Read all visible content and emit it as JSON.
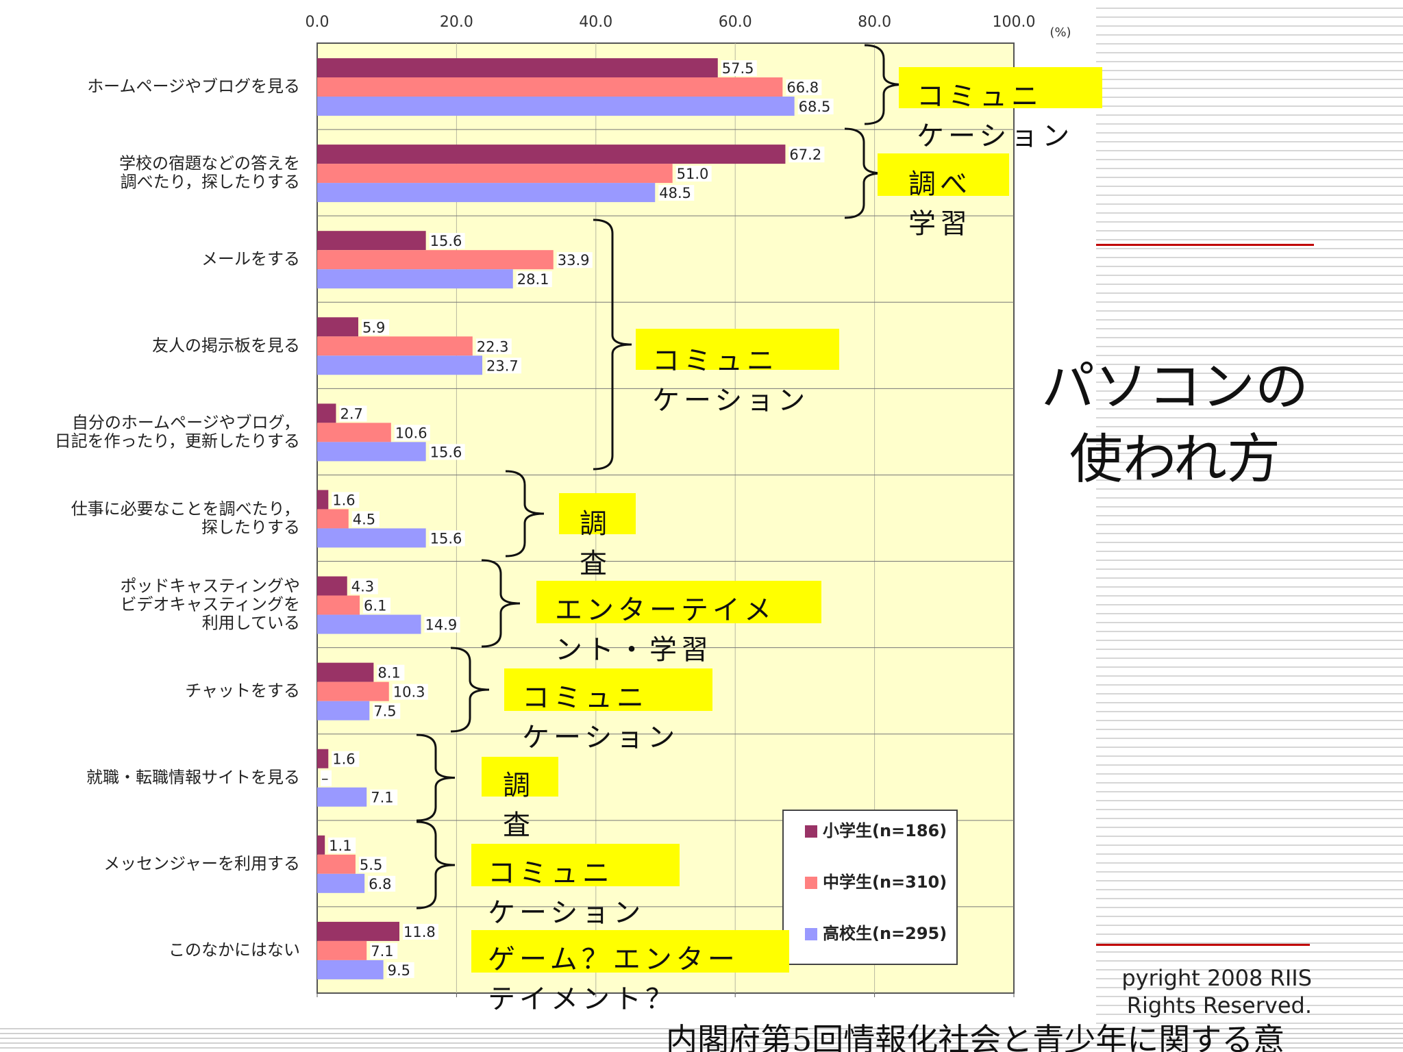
{
  "slide": {
    "title_lines": [
      "パソコンの",
      "使われ方"
    ],
    "copyright_lines": [
      "pyright 2008 RIIS",
      "Rights Reserved."
    ],
    "source": "内閣府第5回情報化社会と青少年に関する意"
  },
  "annotations": [
    {
      "text": "コミュニ ケーション",
      "bracket_for": [
        "ホームページやブログを見る"
      ]
    },
    {
      "text": "調べ 学習",
      "bracket_for": [
        "学校の宿題などの答えを調べたり，探したりする"
      ]
    },
    {
      "text": "コミュニ ケーション",
      "bracket_for": [
        "メールをする",
        "友人の掲示板を見る",
        "自分のホームページやブログ，日記を作ったり，更新したりする"
      ]
    },
    {
      "text": "調 査",
      "bracket_for": [
        "仕事に必要なことを調べたり，探したりする"
      ]
    },
    {
      "text": "エンターテイメ ント・学習",
      "bracket_for": [
        "ポッドキャスティングやビデオキャスティングを利用している"
      ]
    },
    {
      "text": "コミュニ ケーション",
      "bracket_for": [
        "チャットをする"
      ]
    },
    {
      "text": "調 査",
      "bracket_for": [
        "就職・転職情報サイトを見る"
      ]
    },
    {
      "text": "コミュニ ケーション",
      "bracket_for": [
        "メッセンジャーを利用する"
      ]
    },
    {
      "text": "ゲーム？エンター テイメント？",
      "bracket_for": [
        "このなかにはない"
      ]
    }
  ],
  "colors": {
    "plot_bg": "#ffffcc",
    "elementary": "#993366",
    "junior_high": "#ff8080",
    "high_school": "#9999ff",
    "highlight": "#ffff00",
    "accent_line": "#c00000"
  },
  "chart_data": {
    "type": "bar",
    "orientation": "horizontal",
    "unit": "(%)",
    "xlim": [
      0,
      100
    ],
    "x_ticks": [
      "0.0",
      "20.0",
      "40.0",
      "60.0",
      "80.0",
      "100.0"
    ],
    "grid": true,
    "legend_position": "bottom-right",
    "categories": [
      {
        "lines": [
          "ホームページやブログを見る"
        ]
      },
      {
        "lines": [
          "学校の宿題などの答えを",
          "調べたり，探したりする"
        ]
      },
      {
        "lines": [
          "メールをする"
        ]
      },
      {
        "lines": [
          "友人の掲示板を見る"
        ]
      },
      {
        "lines": [
          "自分のホームページやブログ，",
          "日記を作ったり，更新したりする"
        ]
      },
      {
        "lines": [
          "仕事に必要なことを調べたり，",
          "探したりする"
        ]
      },
      {
        "lines": [
          "ポッドキャスティングや",
          "ビデオキャスティングを",
          "利用している"
        ]
      },
      {
        "lines": [
          "チャットをする"
        ]
      },
      {
        "lines": [
          "就職・転職情報サイトを見る"
        ]
      },
      {
        "lines": [
          "メッセンジャーを利用する"
        ]
      },
      {
        "lines": [
          "このなかにはない"
        ]
      }
    ],
    "series": [
      {
        "name": "小学生(n=186)",
        "values": [
          57.5,
          67.2,
          15.6,
          5.9,
          2.7,
          1.6,
          4.3,
          8.1,
          1.6,
          1.1,
          11.8
        ],
        "labels": [
          "57.5",
          "67.2",
          "15.6",
          "5.9",
          "2.7",
          "1.6",
          "4.3",
          "8.1",
          "1.6",
          "1.1",
          "11.8"
        ]
      },
      {
        "name": "中学生(n=310)",
        "values": [
          66.8,
          51.0,
          33.9,
          22.3,
          10.6,
          4.5,
          6.1,
          10.3,
          null,
          5.5,
          7.1
        ],
        "labels": [
          "66.8",
          "51.0",
          "33.9",
          "22.3",
          "10.6",
          "4.5",
          "6.1",
          "10.3",
          "–",
          "5.5",
          "7.1"
        ]
      },
      {
        "name": "高校生(n=295)",
        "values": [
          68.5,
          48.5,
          28.1,
          23.7,
          15.6,
          15.6,
          14.9,
          7.5,
          7.1,
          6.8,
          9.5
        ],
        "labels": [
          "68.5",
          "48.5",
          "28.1",
          "23.7",
          "15.6",
          "15.6",
          "14.9",
          "7.5",
          "7.1",
          "6.8",
          "9.5"
        ]
      }
    ]
  }
}
